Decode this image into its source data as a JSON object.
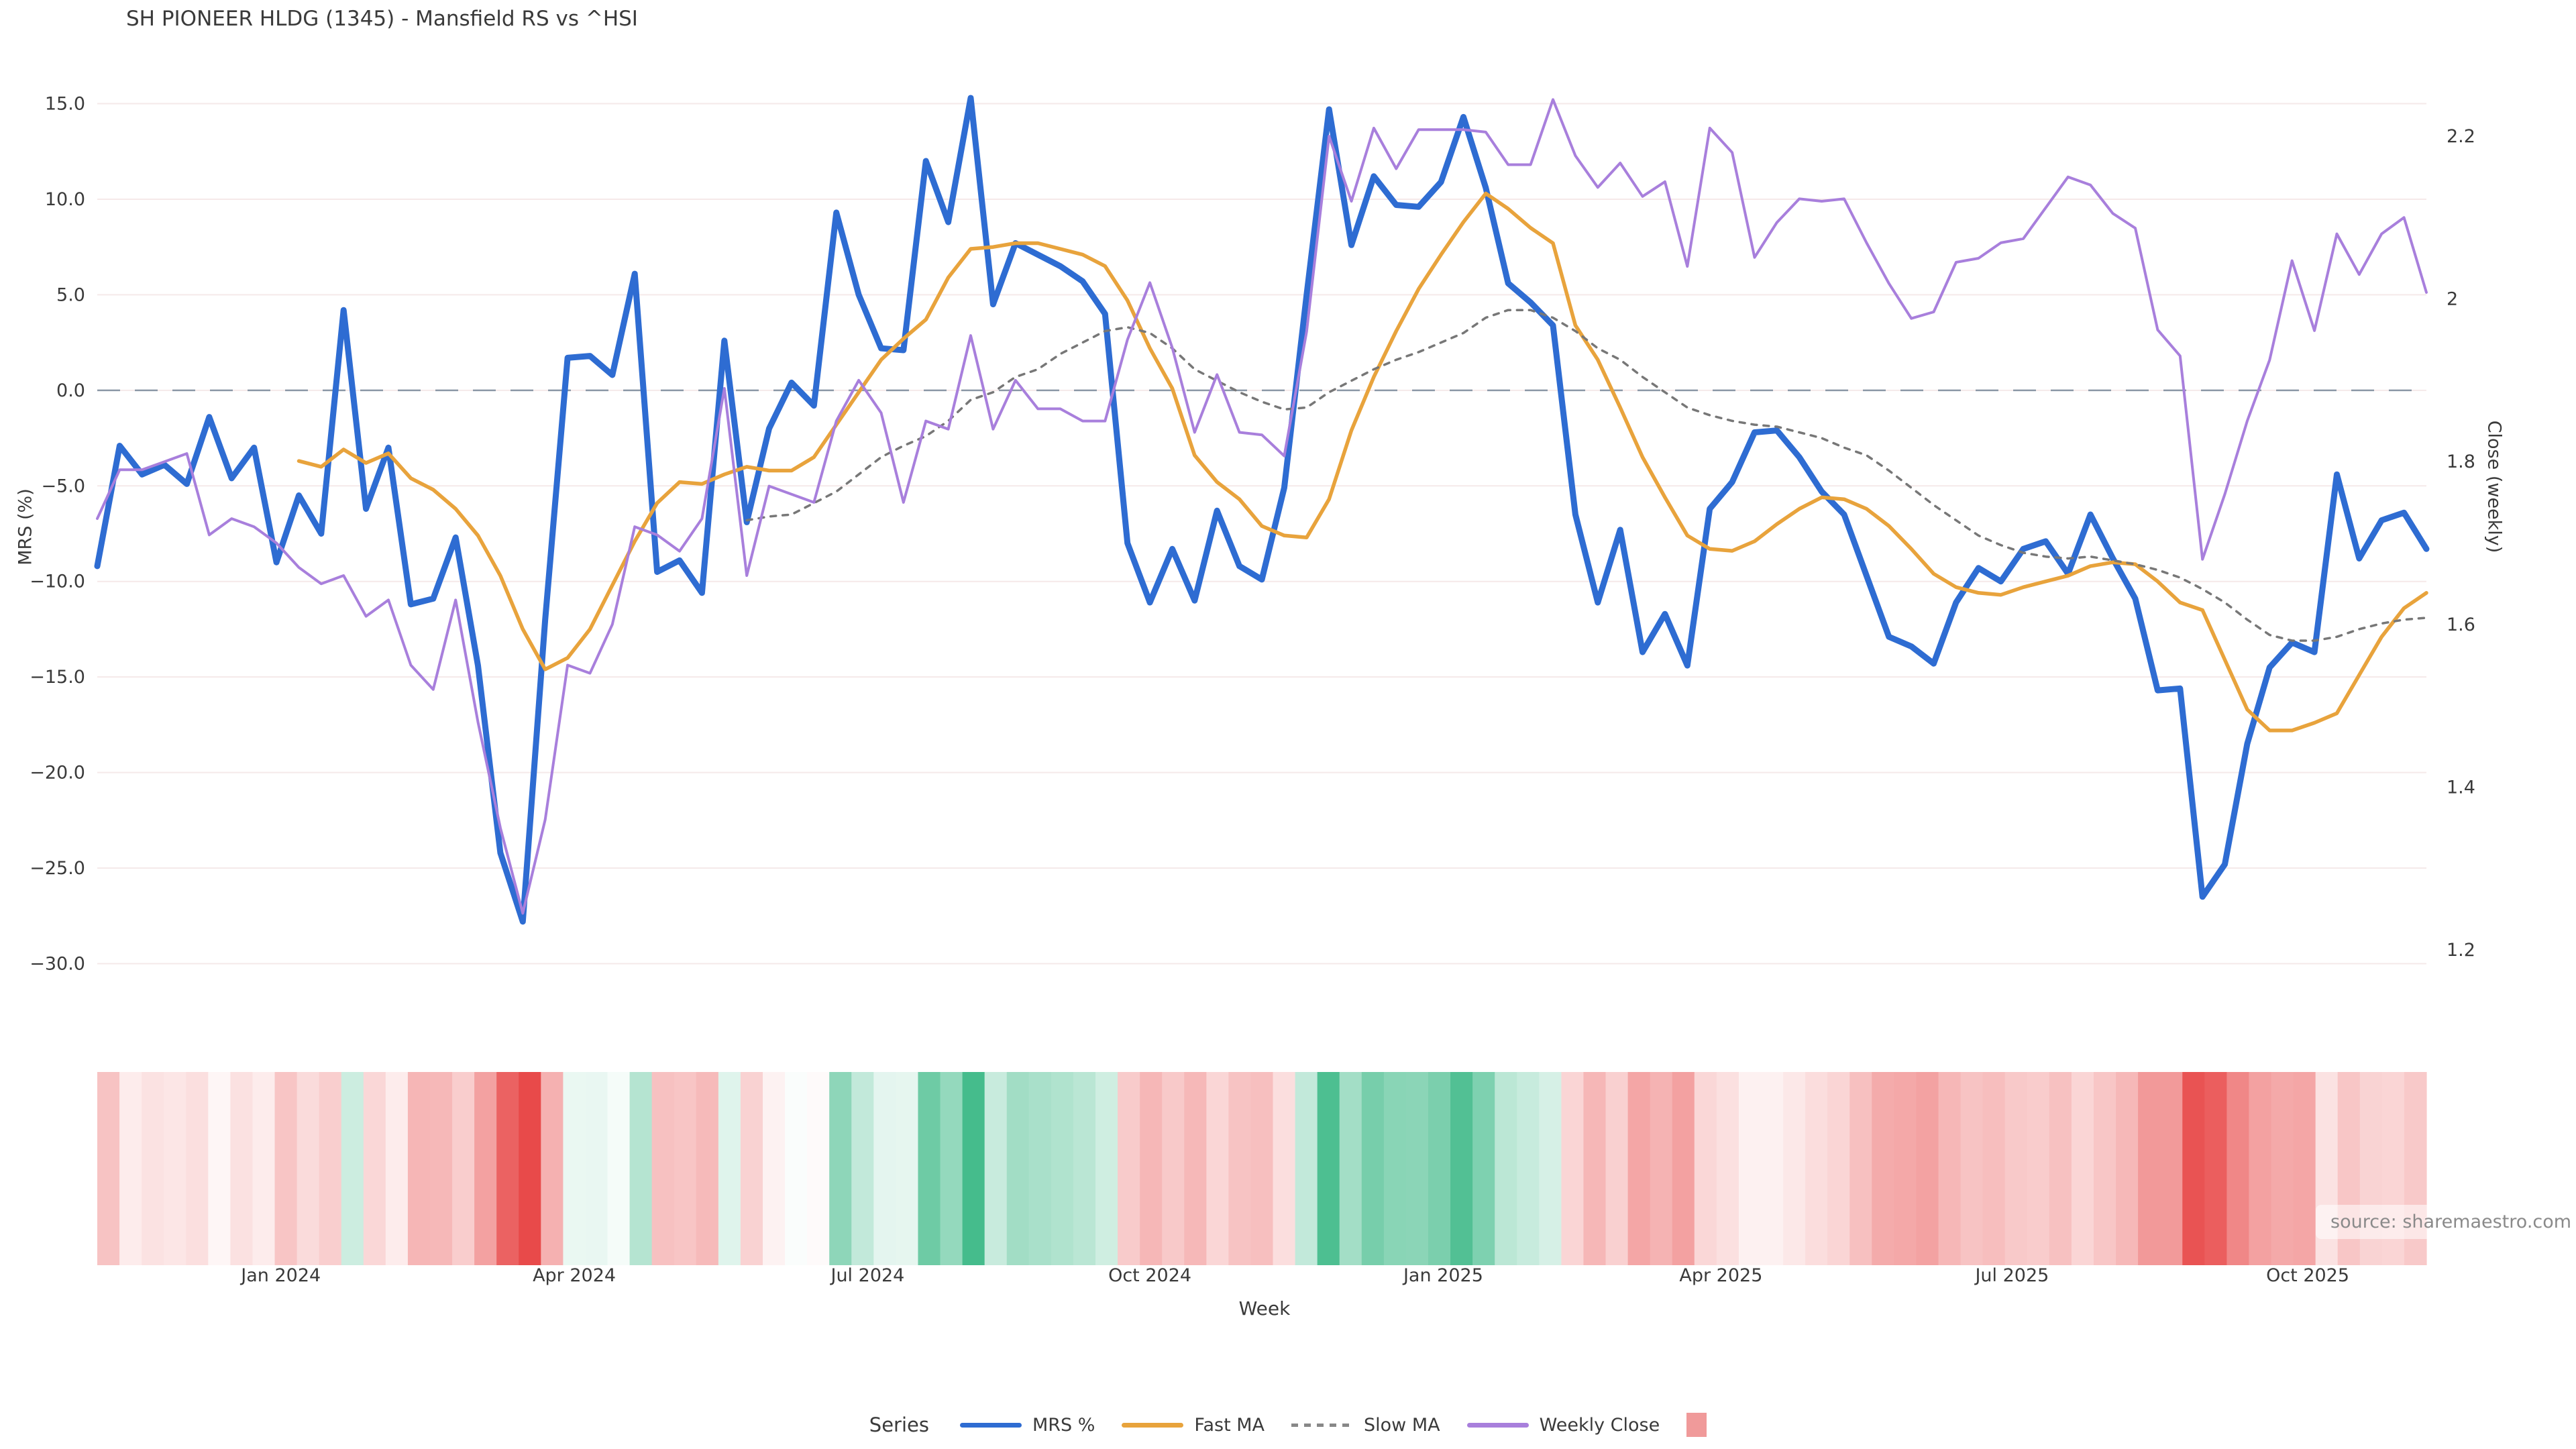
{
  "title": "SH PIONEER HLDG (1345) - Mansfield RS vs ^HSI",
  "source_note": "source: sharemaestro.com",
  "legend": {
    "label": "Series",
    "items": [
      {
        "label": "MRS %",
        "swatch": "line",
        "color": "#2e6cd2"
      },
      {
        "label": "Fast MA",
        "swatch": "line",
        "color": "#e8a33c"
      },
      {
        "label": "Slow MA",
        "swatch": "dash",
        "color": "#888888"
      },
      {
        "label": "Weekly Close",
        "swatch": "line",
        "color": "#a87fdc"
      },
      {
        "label": "",
        "swatch": "square",
        "color": "#f09a9a"
      }
    ]
  },
  "chart_data": {
    "type": "line",
    "title": "SH PIONEER HLDG (1345) - Mansfield RS vs ^HSI",
    "xlabel": "Week",
    "ylabel_left": "MRS (%)",
    "ylabel_right": "Close (weekly)",
    "n_points": 105,
    "x_ticks": {
      "labels": [
        "Jan 2024",
        "Apr 2024",
        "Jul 2024",
        "Oct 2024",
        "Jan 2025",
        "Apr 2025",
        "Jul 2025",
        "Oct 2025"
      ],
      "week_positions": [
        8.2,
        21.3,
        34.4,
        47.0,
        60.1,
        72.5,
        85.5,
        98.7
      ]
    },
    "y_left": {
      "ticks": [
        15.0,
        10.0,
        5.0,
        0.0,
        -5.0,
        -10.0,
        -15.0,
        -20.0,
        -25.0,
        -30.0
      ],
      "tick_labels": [
        "15.0",
        "10.0",
        "5.0",
        "0.0",
        "−5.0",
        "−10.0",
        "−15.0",
        "−20.0",
        "−25.0",
        "−30.0"
      ],
      "range": [
        -30.0,
        15.0
      ]
    },
    "y_right": {
      "ticks": [
        2.2,
        2.0,
        1.8,
        1.6,
        1.4,
        1.2
      ],
      "tick_labels": [
        "2.2",
        "2",
        "1.8",
        "1.6",
        "1.4",
        "1.2"
      ],
      "range": [
        1.2,
        2.2
      ]
    },
    "zero_line": true,
    "grid": true,
    "legend_position": "bottom-center",
    "series": [
      {
        "name": "MRS %",
        "axis": "left",
        "color": "#2e6cd2",
        "style": "solid",
        "width": 9,
        "values": [
          -9.2,
          -2.9,
          -4.4,
          -3.9,
          -4.9,
          -1.4,
          -4.6,
          -3.0,
          -9.0,
          -5.5,
          -7.5,
          4.2,
          -6.2,
          -3.0,
          -11.2,
          -10.9,
          -7.7,
          -14.4,
          -24.2,
          -27.8,
          -12.0,
          1.7,
          1.8,
          0.8,
          6.1,
          -9.5,
          -8.9,
          -10.6,
          2.6,
          -6.9,
          -2.0,
          0.4,
          -0.8,
          9.3,
          5.0,
          2.2,
          2.1,
          12.0,
          8.8,
          15.3,
          4.5,
          7.7,
          7.1,
          6.5,
          5.7,
          4.0,
          -8.0,
          -11.1,
          -8.3,
          -11.0,
          -6.3,
          -9.2,
          -9.9,
          -5.1,
          5.0,
          14.7,
          7.6,
          11.2,
          9.7,
          9.6,
          10.9,
          14.3,
          10.6,
          5.6,
          4.6,
          3.4,
          -6.5,
          -11.1,
          -7.3,
          -13.7,
          -11.7,
          -14.4,
          -6.2,
          -4.8,
          -2.2,
          -2.1,
          -3.5,
          -5.3,
          -6.5,
          -9.7,
          -12.9,
          -13.4,
          -14.3,
          -11.1,
          -9.3,
          -10.0,
          -8.3,
          -7.9,
          -9.6,
          -6.5,
          -8.8,
          -10.9,
          -15.7,
          -15.6,
          -26.5,
          -24.8,
          -18.5,
          -14.5,
          -13.2,
          -13.7,
          -4.4,
          -8.8,
          -6.8,
          -6.4,
          -8.3
        ]
      },
      {
        "name": "Fast MA",
        "axis": "left",
        "color": "#e8a33c",
        "style": "solid",
        "width": 5.5,
        "values": [
          null,
          null,
          null,
          null,
          null,
          null,
          null,
          null,
          null,
          -3.7,
          -4.0,
          -3.1,
          -3.8,
          -3.3,
          -4.6,
          -5.2,
          -6.2,
          -7.6,
          -9.7,
          -12.5,
          -14.6,
          -14.0,
          -12.5,
          -10.2,
          -7.9,
          -5.9,
          -4.8,
          -4.9,
          -4.4,
          -4.0,
          -4.2,
          -4.2,
          -3.5,
          -1.8,
          -0.1,
          1.6,
          2.7,
          3.7,
          5.9,
          7.4,
          7.5,
          7.7,
          7.7,
          7.4,
          7.1,
          6.5,
          4.7,
          2.2,
          0.1,
          -3.4,
          -4.8,
          -5.7,
          -7.1,
          -7.6,
          -7.7,
          -5.7,
          -2.1,
          0.7,
          3.1,
          5.3,
          7.1,
          8.8,
          10.3,
          9.5,
          8.5,
          7.7,
          3.4,
          1.6,
          -0.9,
          -3.5,
          -5.6,
          -7.6,
          -8.3,
          -8.4,
          -7.9,
          -7.0,
          -6.2,
          -5.6,
          -5.7,
          -6.2,
          -7.1,
          -8.3,
          -9.6,
          -10.3,
          -10.6,
          -10.7,
          -10.3,
          -10.0,
          -9.7,
          -9.2,
          -9.0,
          -9.1,
          -10.0,
          -11.1,
          -11.5,
          -14.1,
          -16.7,
          -17.8,
          -17.8,
          -17.4,
          -16.9,
          -14.9,
          -12.9,
          -11.4,
          -10.6
        ]
      },
      {
        "name": "Slow MA",
        "axis": "left",
        "color": "#777777",
        "style": "dotted",
        "width": 3.5,
        "values": [
          null,
          null,
          null,
          null,
          null,
          null,
          null,
          null,
          null,
          null,
          null,
          null,
          null,
          null,
          null,
          null,
          null,
          null,
          null,
          null,
          null,
          null,
          null,
          null,
          null,
          null,
          null,
          null,
          null,
          -6.8,
          -6.6,
          -6.5,
          -5.9,
          -5.3,
          -4.4,
          -3.5,
          -2.9,
          -2.4,
          -1.6,
          -0.5,
          -0.1,
          0.7,
          1.1,
          1.9,
          2.5,
          3.1,
          3.3,
          3.0,
          2.2,
          1.1,
          0.5,
          -0.1,
          -0.6,
          -1.0,
          -0.9,
          -0.1,
          0.5,
          1.1,
          1.6,
          2.0,
          2.5,
          3.0,
          3.8,
          4.2,
          4.2,
          3.8,
          3.1,
          2.2,
          1.6,
          0.7,
          -0.1,
          -0.9,
          -1.3,
          -1.6,
          -1.8,
          -1.9,
          -2.2,
          -2.5,
          -3.0,
          -3.4,
          -4.2,
          -5.1,
          -6.0,
          -6.8,
          -7.6,
          -8.1,
          -8.5,
          -8.7,
          -8.8,
          -8.7,
          -8.9,
          -9.1,
          -9.4,
          -9.8,
          -10.4,
          -11.1,
          -12.0,
          -12.8,
          -13.1,
          -13.1,
          -12.9,
          -12.5,
          -12.2,
          -12.0,
          -11.9
        ]
      },
      {
        "name": "Weekly Close",
        "axis": "right",
        "color": "#a87fdc",
        "style": "solid",
        "width": 4,
        "values": [
          1.73,
          1.79,
          1.79,
          1.8,
          1.81,
          1.71,
          1.73,
          1.72,
          1.7,
          1.67,
          1.65,
          1.66,
          1.61,
          1.63,
          1.55,
          1.52,
          1.63,
          1.48,
          1.35,
          1.245,
          1.36,
          1.55,
          1.54,
          1.6,
          1.72,
          1.71,
          1.69,
          1.73,
          1.89,
          1.66,
          1.77,
          1.76,
          1.75,
          1.85,
          1.9,
          1.86,
          1.75,
          1.85,
          1.84,
          1.955,
          1.84,
          1.9,
          1.865,
          1.865,
          1.85,
          1.85,
          1.95,
          2.02,
          1.94,
          1.836,
          1.907,
          1.836,
          1.833,
          1.807,
          1.96,
          2.2,
          2.12,
          2.21,
          2.16,
          2.208,
          2.208,
          2.208,
          2.205,
          2.165,
          2.165,
          2.245,
          2.176,
          2.137,
          2.167,
          2.126,
          2.144,
          2.04,
          2.21,
          2.18,
          2.051,
          2.094,
          2.123,
          2.12,
          2.123,
          2.069,
          2.019,
          1.976,
          1.984,
          2.045,
          2.05,
          2.069,
          2.074,
          2.112,
          2.15,
          2.14,
          2.105,
          2.087,
          1.962,
          1.93,
          1.68,
          1.76,
          1.85,
          1.925,
          2.047,
          1.961,
          2.08,
          2.03,
          2.08,
          2.1,
          2.008
        ]
      }
    ],
    "heatmap": {
      "based_on": "MRS %",
      "negative_color": "#e84949",
      "positive_color": "#3db987",
      "negative_saturation_at": 28,
      "positive_saturation_at": 16
    }
  },
  "colors": {
    "grid": "#f5e9e9",
    "zero_line": "#8b98a6",
    "tick_text": "#3a3a3a",
    "source_text": "#8a8a8a"
  }
}
